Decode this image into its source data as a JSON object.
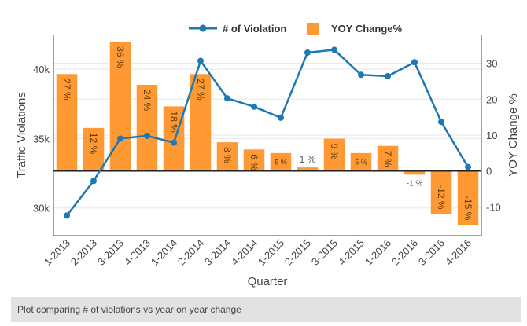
{
  "caption": "Plot comparing # of violations vs year on year change",
  "colors": {
    "line": "#1f77b4",
    "bar": "#ff9933",
    "grid": "#e8e8e8",
    "text": "#444444"
  },
  "chart_data": {
    "type": "bar+line",
    "xlabel": "Quarter",
    "ylabel": "Traffic Violations",
    "y2label": "YOY Change %",
    "categories": [
      "1-2013",
      "2-2013",
      "3-2013",
      "4-2013",
      "1-2014",
      "2-2014",
      "3-2014",
      "4-2014",
      "1-2015",
      "2-2015",
      "3-2015",
      "4-2015",
      "1-2016",
      "2-2016",
      "3-2016",
      "4-2016"
    ],
    "ylim": [
      28000,
      42500
    ],
    "yticks": [
      30000,
      35000,
      40000
    ],
    "ytick_labels": [
      "30k",
      "35k",
      "40k"
    ],
    "y2lim": [
      -18,
      38
    ],
    "y2ticks": [
      -10,
      0,
      10,
      20,
      30
    ],
    "legend": [
      "# of Violation",
      "YOY Change%"
    ],
    "legend_position": "top",
    "series": [
      {
        "name": "# of Violation",
        "kind": "line",
        "values": [
          29450,
          31950,
          35000,
          35200,
          34700,
          40600,
          37900,
          37300,
          36500,
          41200,
          41400,
          39600,
          39500,
          40500,
          36200,
          32950
        ]
      },
      {
        "name": "YOY Change%",
        "kind": "bar",
        "values": [
          27,
          12,
          36,
          24,
          18,
          27,
          8,
          6,
          5,
          1,
          9,
          5,
          7,
          -1,
          -12,
          -15
        ],
        "labels": [
          "27 %",
          "12 %",
          "36 %",
          "24 %",
          "18 %",
          "27 %",
          "8 %",
          "6 %",
          "5 %",
          "1 %",
          "9 %",
          "5 %",
          "7 %",
          "-1 %",
          "-12 %",
          "-15 %"
        ]
      }
    ]
  }
}
